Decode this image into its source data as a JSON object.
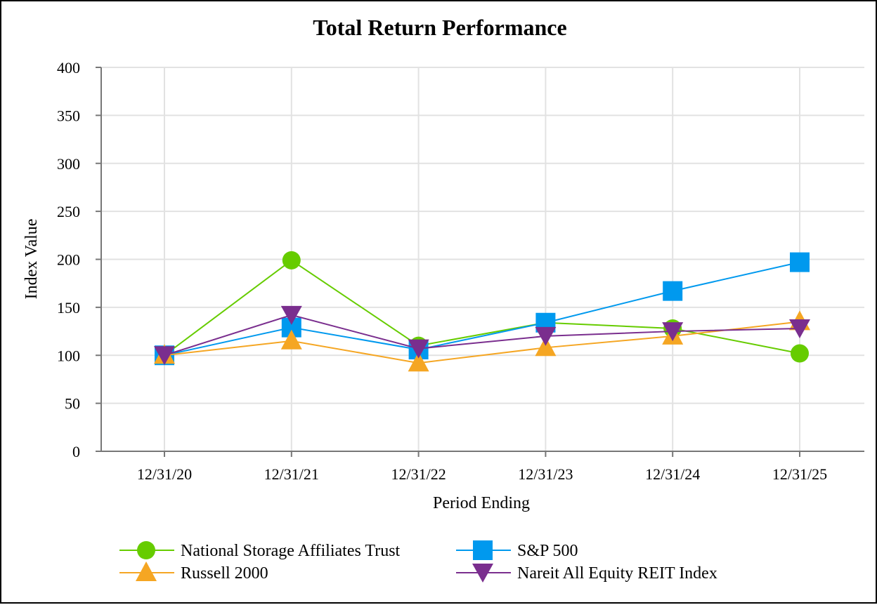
{
  "chart_data": {
    "type": "line",
    "title": "Total Return Performance",
    "xlabel": "Period Ending",
    "ylabel": "Index Value",
    "ylim": [
      0,
      400
    ],
    "yticks": [
      0,
      50,
      100,
      150,
      200,
      250,
      300,
      350,
      400
    ],
    "categories": [
      "12/31/20",
      "12/31/21",
      "12/31/22",
      "12/31/23",
      "12/31/24",
      "12/31/25"
    ],
    "grid": true,
    "legend_position": "bottom",
    "series": [
      {
        "name": "National Storage Affiliates Trust",
        "color": "#66cc00",
        "marker": "circle",
        "values": [
          100,
          199,
          110,
          134,
          128,
          102
        ]
      },
      {
        "name": "S&P 500",
        "color": "#0099ee",
        "marker": "square",
        "values": [
          100,
          129,
          106,
          134,
          167,
          197
        ]
      },
      {
        "name": "Russell 2000",
        "color": "#f5a623",
        "marker": "triangle-up",
        "values": [
          100,
          115,
          92,
          108,
          120,
          135
        ]
      },
      {
        "name": "Nareit All Equity REIT Index",
        "color": "#7a2e8e",
        "marker": "triangle-down",
        "values": [
          100,
          142,
          107,
          120,
          125,
          128
        ]
      }
    ]
  }
}
